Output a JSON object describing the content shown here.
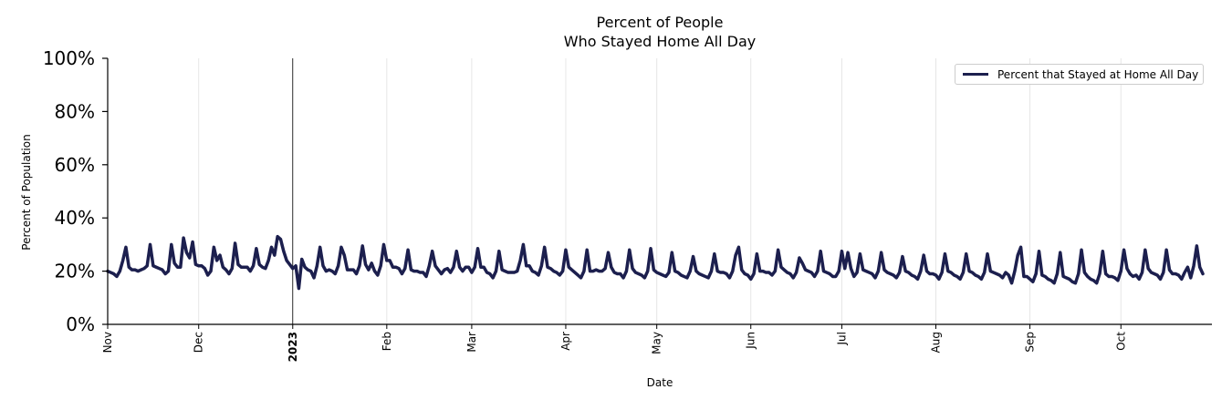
{
  "chart_data": {
    "type": "line",
    "title": "Percent of People",
    "subtitle": "Who Stayed Home All Day",
    "xlabel": "Date",
    "ylabel": "Percent of Population",
    "ylim": [
      0,
      100
    ],
    "y_ticks": [
      "0%",
      "20%",
      "40%",
      "60%",
      "80%",
      "100%"
    ],
    "x_range": [
      "2022-11-01",
      "2023-10-31"
    ],
    "x_ticks": [
      {
        "label": "Nov",
        "date": "2022-11-01",
        "bold": false
      },
      {
        "label": "Dec",
        "date": "2022-12-01",
        "bold": false
      },
      {
        "label": "2023",
        "date": "2023-01-01",
        "bold": true
      },
      {
        "label": "Feb",
        "date": "2023-02-01",
        "bold": false
      },
      {
        "label": "Mar",
        "date": "2023-03-01",
        "bold": false
      },
      {
        "label": "Apr",
        "date": "2023-04-01",
        "bold": false
      },
      {
        "label": "May",
        "date": "2023-05-01",
        "bold": false
      },
      {
        "label": "Jun",
        "date": "2023-06-01",
        "bold": false
      },
      {
        "label": "Jul",
        "date": "2023-07-01",
        "bold": false
      },
      {
        "label": "Aug",
        "date": "2023-08-01",
        "bold": false
      },
      {
        "label": "Sep",
        "date": "2023-09-01",
        "bold": false
      },
      {
        "label": "Oct",
        "date": "2023-10-01",
        "bold": false
      }
    ],
    "vertical_marker": "2023-01-01",
    "grid": "vertical",
    "legend_position": "top-right",
    "series": [
      {
        "name": "Percent that Stayed at Home All Day",
        "color": "#1c1f4e",
        "start_date": "2022-11-01",
        "values": [
          20,
          19.5,
          19,
          18,
          20,
          24,
          29,
          21.5,
          20.5,
          20.5,
          20,
          20.5,
          21,
          22,
          30,
          22,
          21.5,
          21,
          20.5,
          19,
          20,
          30,
          23,
          21.5,
          21.5,
          32.5,
          27,
          25,
          31,
          22.5,
          22,
          22,
          21,
          18.5,
          20,
          29,
          24,
          26,
          21.5,
          20.5,
          19,
          21,
          30.5,
          22.5,
          21.5,
          21.5,
          21.5,
          20,
          22,
          28.5,
          22.5,
          21.5,
          21,
          24,
          29,
          26,
          33,
          32,
          27.5,
          24,
          22.5,
          21,
          22,
          13.5,
          24.5,
          21.5,
          20.5,
          20,
          17.5,
          22,
          29,
          22,
          20,
          20.5,
          20,
          19,
          22,
          29,
          26,
          20.5,
          20.5,
          20.5,
          19,
          22,
          29.5,
          22.5,
          20.5,
          23,
          20,
          18.5,
          22,
          30,
          24,
          24,
          21.5,
          21.5,
          21,
          19,
          21,
          28,
          20.5,
          20,
          20,
          19.5,
          19.5,
          18,
          22,
          27.5,
          22,
          20.5,
          19,
          20.5,
          21,
          19.5,
          21.5,
          27.5,
          21.5,
          20,
          21.5,
          21.5,
          19.5,
          21.5,
          28.5,
          21.5,
          21.5,
          19.5,
          19,
          17.5,
          20,
          27.5,
          20.5,
          20,
          19.5,
          19.5,
          19.5,
          20,
          24,
          30,
          22,
          22,
          20,
          19.5,
          18.5,
          22,
          29,
          21.5,
          21,
          20,
          19.5,
          18.5,
          20,
          28,
          21.5,
          20.5,
          19.5,
          18.5,
          17.5,
          20,
          28,
          20,
          20,
          20.5,
          20,
          20,
          21,
          27,
          21.5,
          19.5,
          19,
          19,
          17.5,
          20,
          28,
          21,
          19.5,
          19,
          18.5,
          17.5,
          20,
          28.5,
          20.5,
          19.5,
          19,
          18.5,
          18,
          19.5,
          27,
          20,
          19.5,
          18.5,
          18,
          17.5,
          20,
          25.5,
          20,
          19,
          18.5,
          18,
          17.5,
          20,
          26.5,
          20,
          19.5,
          19.5,
          19,
          17.5,
          20,
          26,
          29,
          20.5,
          19,
          18.5,
          17,
          19,
          26.5,
          20,
          20,
          19.5,
          19.5,
          18.5,
          20,
          28,
          21.5,
          20.5,
          19.5,
          19,
          17.5,
          19.5,
          25,
          23,
          20.5,
          20,
          19.5,
          18,
          20,
          27.5,
          20,
          19.5,
          19,
          18,
          18,
          20,
          27.5,
          21,
          27,
          21,
          18,
          19.5,
          26.5,
          20.5,
          20,
          19.5,
          19,
          17.5,
          20,
          27,
          20.5,
          19.5,
          19,
          18.5,
          17.5,
          19.5,
          25.5,
          20,
          19.5,
          18.5,
          18,
          17,
          20,
          26,
          20,
          19,
          19,
          18.5,
          17,
          19.5,
          26.5,
          20,
          19.5,
          18.5,
          18,
          17,
          19.5,
          26.5,
          20,
          19.5,
          18.5,
          18,
          17,
          19.5,
          26.5,
          20,
          19.5,
          19,
          18.5,
          17.5,
          19.5,
          18.5,
          15.5,
          20,
          26,
          29,
          18,
          18,
          17,
          16,
          19,
          27.5,
          18.5,
          18,
          17,
          16.5,
          15.5,
          19,
          27,
          18,
          17.5,
          17,
          16,
          15.5,
          19,
          28,
          19.5,
          18,
          17,
          16.5,
          15.5,
          19,
          27.5,
          19,
          18,
          18,
          17.5,
          16.5,
          20,
          28,
          21,
          19,
          18,
          18.5,
          17,
          19.5,
          28,
          21,
          19.5,
          19,
          18.5,
          17,
          19.5,
          28,
          20.5,
          19,
          19,
          18.5,
          17,
          19.5,
          21.5,
          17.5,
          22,
          29.5,
          21.5,
          19
        ]
      }
    ]
  }
}
